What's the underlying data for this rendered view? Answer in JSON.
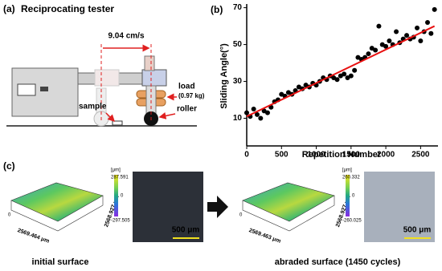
{
  "panel_a": {
    "label": "(a)",
    "title": "Reciprocating tester",
    "speed": "9.04 cm/s",
    "load": "load",
    "load_mass": "(0.97 kg)",
    "sample": "sample",
    "roller": "roller"
  },
  "chart_data": {
    "type": "scatter",
    "panel_label": "(b)",
    "x_label": "Repetition Number",
    "y_label": "Sliding Angle(°)",
    "x": [
      0,
      50,
      100,
      150,
      200,
      250,
      300,
      350,
      400,
      450,
      500,
      550,
      600,
      650,
      700,
      750,
      800,
      850,
      900,
      950,
      1000,
      1050,
      1100,
      1150,
      1200,
      1250,
      1300,
      1350,
      1400,
      1450,
      1500,
      1550,
      1600,
      1650,
      1700,
      1750,
      1800,
      1850,
      1900,
      1950,
      2000,
      2050,
      2100,
      2150,
      2200,
      2250,
      2300,
      2350,
      2400,
      2450,
      2500,
      2550,
      2600,
      2650,
      2700
    ],
    "values": [
      13,
      11,
      15,
      12,
      10,
      14,
      13,
      16,
      19,
      20,
      23,
      22,
      24,
      23,
      25,
      27,
      26,
      28,
      27,
      29,
      28,
      30,
      32,
      31,
      33,
      32,
      31,
      33,
      34,
      32,
      33,
      36,
      43,
      42,
      43,
      45,
      48,
      47,
      60,
      50,
      49,
      52,
      50,
      57,
      51,
      53,
      55,
      53,
      54,
      59,
      52,
      57,
      62,
      56,
      69
    ],
    "color": "#000000",
    "trend_line": {
      "color": "#e81010",
      "x": [
        0,
        2700
      ],
      "y": [
        11,
        60
      ]
    },
    "xlim": [
      0,
      2750
    ],
    "ylim": [
      -5,
      72
    ],
    "xticks": [
      0,
      500,
      1000,
      1500,
      2000,
      2500
    ],
    "yticks": [
      10,
      30,
      50,
      70
    ]
  },
  "panel_c": {
    "label": "(c)",
    "samples": [
      {
        "unit": "[μm]",
        "max": "287.591",
        "zero": "0",
        "min": "-297.505",
        "y_length": "2568.927 μm",
        "x_length": "2569.464 μm",
        "origin": "0",
        "scale_bar": "500 μm",
        "caption": "initial surface"
      },
      {
        "unit": "[μm]",
        "max": "260.332",
        "zero": "0",
        "min": "-260.025",
        "y_length": "2568.927 μm",
        "x_length": "2569.463 μm",
        "origin": "0",
        "scale_bar": "500 μm",
        "caption": "abraded surface (1450 cycles)"
      }
    ]
  }
}
